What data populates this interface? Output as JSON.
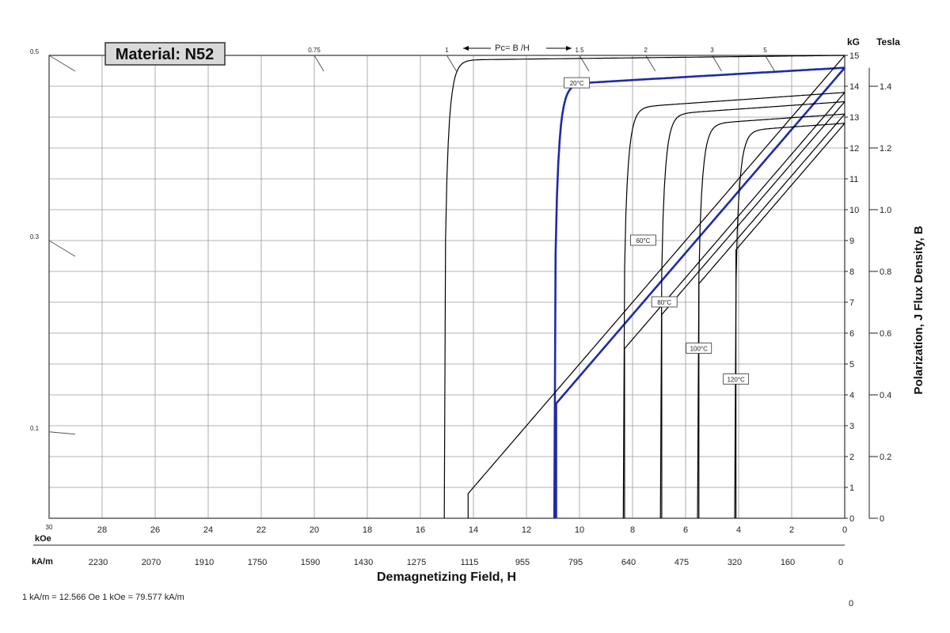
{
  "chart_data": {
    "type": "line",
    "title": "Material: N52",
    "xlabel": "Demagnetizing Field, H",
    "ylabel": "Polarization,   J     Flux Density, B",
    "x_unit_primary": "kOe",
    "x_unit_secondary": "kA/m",
    "y_unit_left": "kG",
    "y_unit_right": "Tesla",
    "xlim": [
      30,
      0
    ],
    "ylim": [
      0,
      15
    ],
    "grid": true,
    "x_ticks_koe": [
      "28",
      "26",
      "24",
      "22",
      "20",
      "18",
      "16",
      "14",
      "12",
      "10",
      "8",
      "6",
      "4",
      "2",
      "0"
    ],
    "x_ticks_koe_cut": "30",
    "x_ticks_kam": [
      "2230",
      "2070",
      "1910",
      "1750",
      "1590",
      "1430",
      "1275",
      "1115",
      "955",
      "795",
      "640",
      "475",
      "320",
      "160",
      "0"
    ],
    "y_ticks_kg": [
      "0",
      "1",
      "2",
      "3",
      "4",
      "5",
      "6",
      "7",
      "8",
      "9",
      "10",
      "11",
      "12",
      "13",
      "14",
      "15"
    ],
    "y_ticks_tesla": [
      "0",
      "0.2",
      "0.4",
      "0.6",
      "0.8",
      "1.0",
      "1.2",
      "1.4"
    ],
    "pc_label": "Pc= B /H",
    "pc_ticks": [
      {
        "label": "0.5",
        "edge": "left",
        "y": 15
      },
      {
        "label": "0.3",
        "edge": "left",
        "y": 9
      },
      {
        "label": "0.1",
        "edge": "left",
        "y": 2.8
      },
      {
        "label": "0.75",
        "edge": "top",
        "x": 20
      },
      {
        "label": "1",
        "edge": "top",
        "x": 15
      },
      {
        "label": "1.5",
        "edge": "top",
        "x": 10
      },
      {
        "label": "2",
        "edge": "top",
        "x": 7.5
      },
      {
        "label": "3",
        "edge": "top",
        "x": 5
      },
      {
        "label": "5",
        "edge": "top",
        "x": 3
      }
    ],
    "series": [
      {
        "name": "20°C",
        "color": "#1f2aa8",
        "highlight": true,
        "J": {
          "Hc": 10.95,
          "Jr": 14.6,
          "slope": 0.05
        },
        "B": {
          "Br": 14.6,
          "knee": [
            10.88,
            3.0
          ]
        }
      },
      {
        "name": "60°C",
        "color": "#000000",
        "J": {
          "Hc": 8.35,
          "Jr": 13.8,
          "slope": 0.06
        },
        "B": {
          "Br": 13.8,
          "knee": [
            8.3,
            5.3
          ]
        }
      },
      {
        "name": "80°C",
        "color": "#000000",
        "J": {
          "Hc": 6.95,
          "Jr": 13.5,
          "slope": 0.06
        },
        "B": {
          "Br": 13.5,
          "knee": [
            6.9,
            6.5
          ]
        }
      },
      {
        "name": "100°C",
        "color": "#000000",
        "J": {
          "Hc": 5.55,
          "Jr": 13.1,
          "slope": 0.06
        },
        "B": {
          "Br": 13.1,
          "knee": [
            5.5,
            7.6
          ]
        }
      },
      {
        "name": "120°C",
        "color": "#000000",
        "J": {
          "Hc": 4.15,
          "Jr": 12.8,
          "slope": 0.06
        },
        "B": {
          "Br": 12.8,
          "knee": [
            4.1,
            8.6
          ]
        }
      },
      {
        "name": "",
        "color": "#000000",
        "J": {
          "Hc": 15.1,
          "Jr": 15.0,
          "slope": 0.01
        },
        "B": {
          "Br": 15.0,
          "knee": [
            14.2,
            0
          ]
        }
      }
    ]
  },
  "footnote": "1 kA/m = 12.566 Oe     1 kOe = 79.577 kA/m",
  "corner_zero": "0"
}
